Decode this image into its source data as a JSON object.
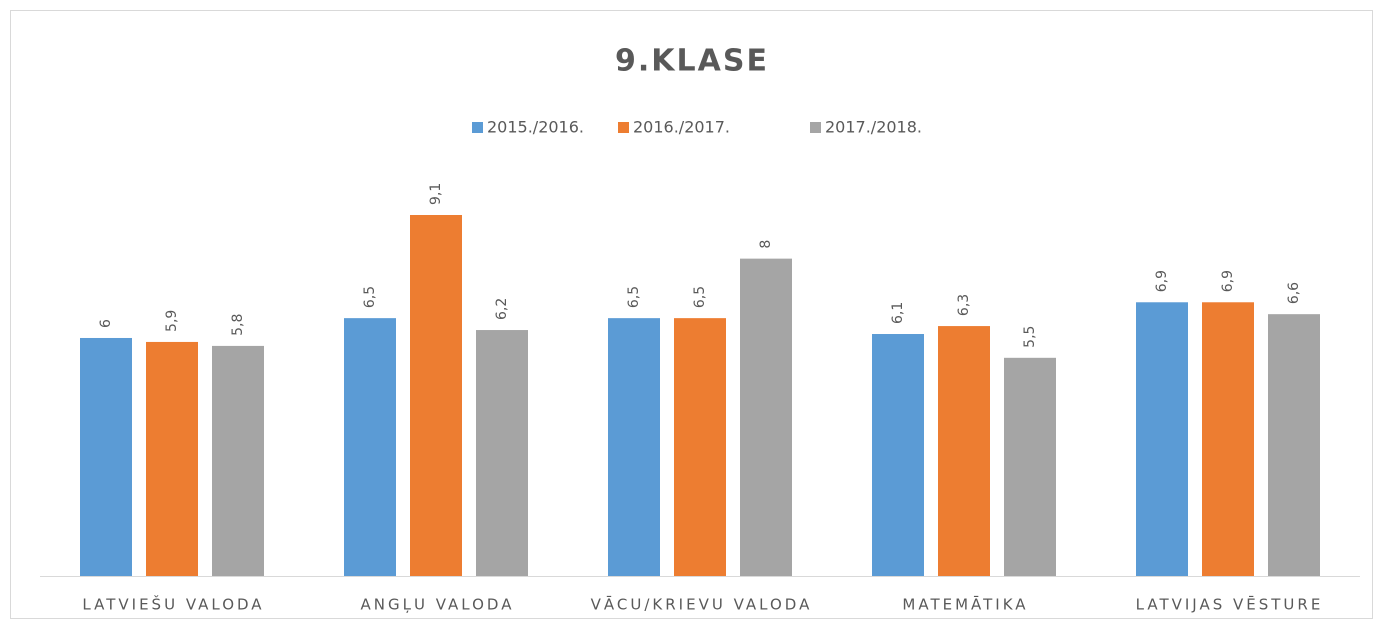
{
  "chart_data": {
    "type": "bar",
    "title": "9.KLASE",
    "categories": [
      "LATVIEŠU VALODA",
      "ANGĻU VALODA",
      "VĀCU/KRIEVU VALODA",
      "MATEMĀTIKA",
      "LATVIJAS VĒSTURE"
    ],
    "series": [
      {
        "name": "2015./2016.",
        "color": "#5b9bd5",
        "values": [
          6,
          6.5,
          6.5,
          6.1,
          6.9
        ],
        "value_labels": [
          "6",
          "6,5",
          "6,5",
          "6,1",
          "6,9"
        ]
      },
      {
        "name": "2016./2017.",
        "color": "#ed7d31",
        "values": [
          5.9,
          9.1,
          6.5,
          6.3,
          6.9
        ],
        "value_labels": [
          "5,9",
          "9,1",
          "6,5",
          "6,3",
          "6,9"
        ]
      },
      {
        "name": "2017./2018.",
        "color": "#a5a5a5",
        "values": [
          5.8,
          6.2,
          8,
          5.5,
          6.6
        ],
        "value_labels": [
          "5,8",
          "6,2",
          "8",
          "5,5",
          "6,6"
        ]
      }
    ],
    "legend": "top"
  }
}
